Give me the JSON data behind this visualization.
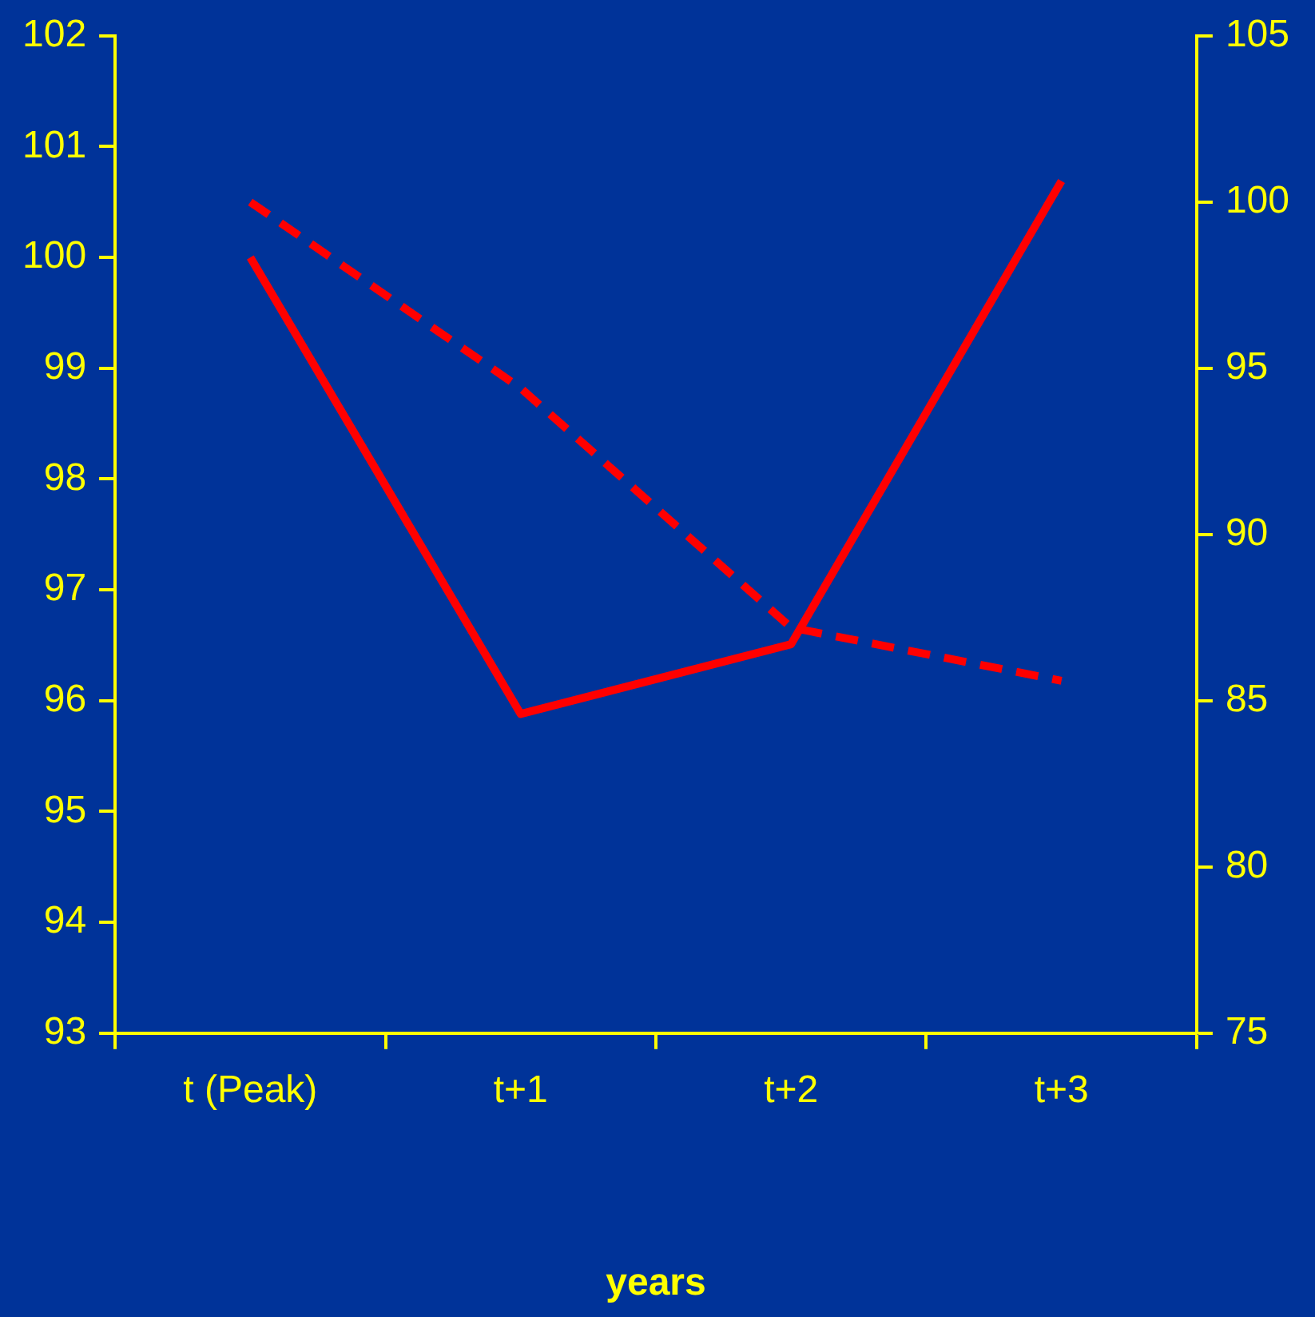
{
  "chart_data": {
    "type": "line",
    "xlabel": "years",
    "categories": [
      "t (Peak)",
      "t+1",
      "t+2",
      "t+3"
    ],
    "marker": "none",
    "series": [
      {
        "color": "#ff0000",
        "values": [
          100.0,
          95.88,
          96.51,
          100.69
        ],
        "line_style": "solid"
      },
      {
        "color": "#ff0000",
        "values": [
          100.0,
          94.4,
          87.2,
          85.6
        ],
        "axis": "y2",
        "line_style": "dashed"
      }
    ],
    "ylim": [
      93,
      102
    ],
    "yticks": [
      93,
      94,
      95,
      96,
      97,
      98,
      99,
      100,
      101,
      102
    ],
    "y2lim": [
      75,
      105
    ],
    "y2ticks": [
      75,
      80,
      85,
      90,
      95,
      100,
      105
    ]
  }
}
